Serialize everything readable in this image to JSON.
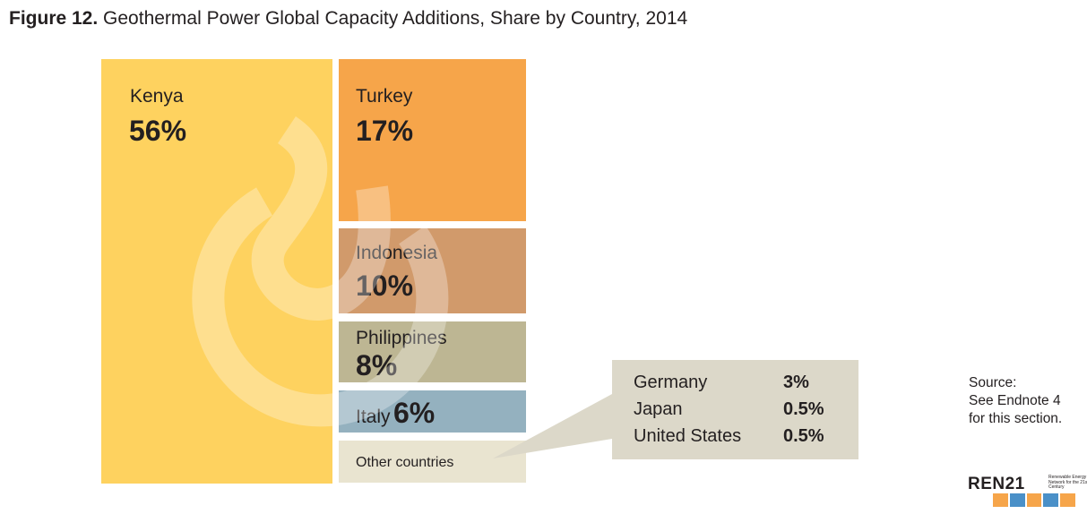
{
  "figure": {
    "label": "Figure 12.",
    "title": "Geothermal Power Global Capacity Additions, Share by Country, 2014"
  },
  "chart_data": {
    "type": "treemap",
    "title": "Figure 12. Geothermal Power Global Capacity Additions, Share by Country, 2014",
    "unit": "%",
    "categories": [
      "Kenya",
      "Turkey",
      "Indonesia",
      "Philippines",
      "Italy",
      "Other countries"
    ],
    "values": [
      56,
      17,
      10,
      8,
      6,
      4
    ],
    "labels": [
      "56%",
      "17%",
      "10%",
      "8%",
      "6%",
      ""
    ],
    "colors": [
      "#fed25f",
      "#f6a54a",
      "#d19a6b",
      "#bdb693",
      "#94b1bf",
      "#e9e4d0"
    ],
    "other_breakdown": [
      {
        "name": "Germany",
        "value": 3,
        "label": "3%"
      },
      {
        "name": "Japan",
        "value": 0.5,
        "label": "0.5%"
      },
      {
        "name": "United States",
        "value": 0.5,
        "label": "0.5%"
      }
    ]
  },
  "source": {
    "line1": "Source:",
    "line2": "See Endnote 4",
    "line3": "for this section."
  },
  "logo": {
    "text": "REN21",
    "tagline": "Renewable Energy Policy Network for the 21st Century",
    "icons": [
      "sun-icon",
      "wind-icon",
      "geothermal-icon",
      "water-icon",
      "biomass-icon"
    ],
    "icon_colors": [
      "#f6a54a",
      "#4a90c8",
      "#f6a54a",
      "#4a90c8",
      "#f6a54a"
    ]
  },
  "colors": {
    "callout_bg": "#dcd8c9",
    "watermark": "#ffffff"
  }
}
